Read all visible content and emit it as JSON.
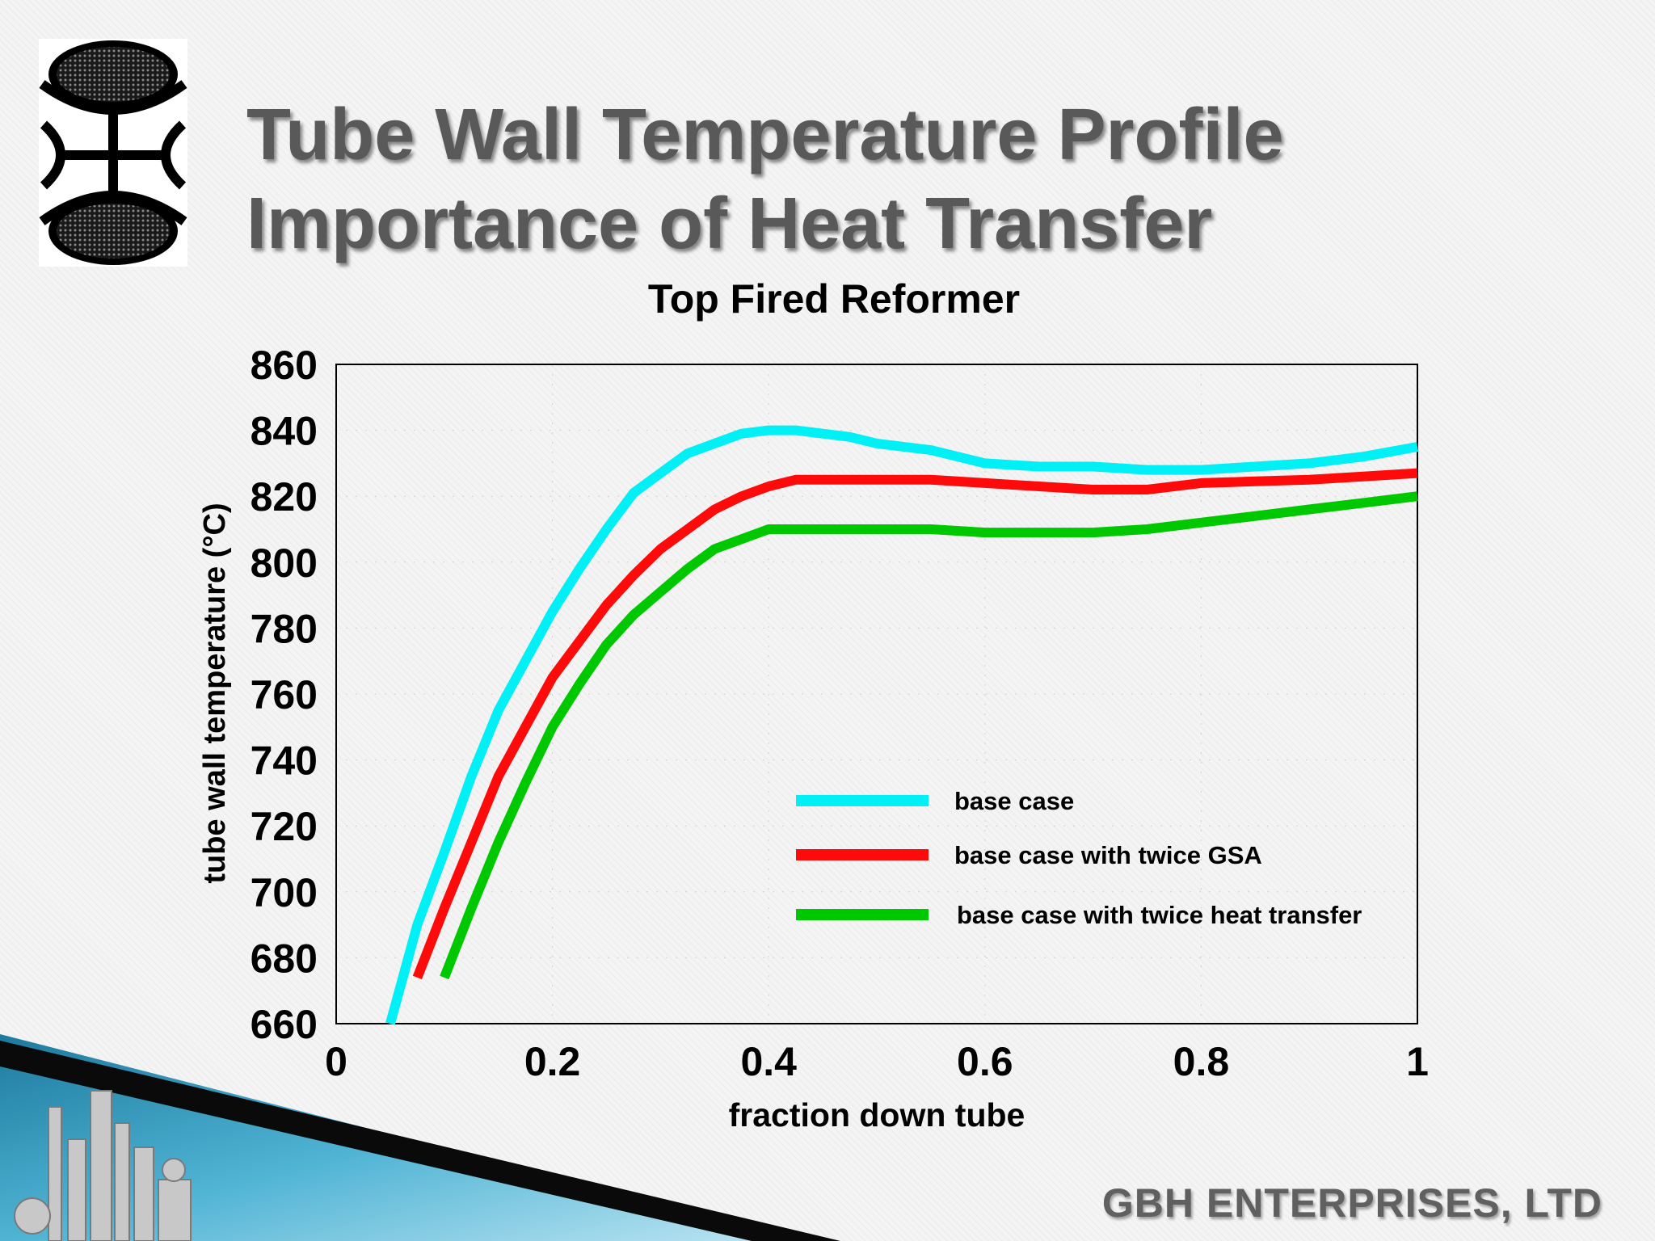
{
  "slide": {
    "title_line1": "Tube Wall Temperature Profile",
    "title_line2": "Importance of Heat Transfer",
    "company": "GBH ENTERPRISES, LTD"
  },
  "colors": {
    "base_case": "#00f0f5",
    "twice_gsa": "#ff0a0a",
    "twice_heat_transfer": "#00c800",
    "title_text": "#595959"
  },
  "chart_data": {
    "type": "line",
    "title": "Top Fired Reformer",
    "xlabel": "fraction down tube",
    "ylabel": "tube wall temperature (°C)",
    "xlim": [
      0,
      1
    ],
    "ylim": [
      660,
      860
    ],
    "xticks": [
      0,
      0.2,
      0.4,
      0.6,
      0.8,
      1
    ],
    "xtick_labels": [
      "0",
      "0.2",
      "0.4",
      "0.6",
      "0.8",
      "1"
    ],
    "yticks": [
      660,
      680,
      700,
      720,
      740,
      760,
      780,
      800,
      820,
      840,
      860
    ],
    "ytick_labels": [
      "660",
      "680",
      "700",
      "720",
      "740",
      "760",
      "780",
      "800",
      "820",
      "840",
      "860"
    ],
    "legend_position": "lower-right",
    "series": [
      {
        "name": "base case",
        "color": "#00f0f5",
        "x": [
          0.05,
          0.075,
          0.1,
          0.125,
          0.15,
          0.175,
          0.2,
          0.225,
          0.25,
          0.275,
          0.3,
          0.325,
          0.35,
          0.375,
          0.4,
          0.425,
          0.45,
          0.475,
          0.5,
          0.55,
          0.6,
          0.65,
          0.7,
          0.75,
          0.8,
          0.85,
          0.9,
          0.95,
          1.0
        ],
        "y": [
          660,
          690,
          712,
          735,
          755,
          770,
          785,
          798,
          810,
          821,
          827,
          833,
          836,
          839,
          840,
          840,
          839,
          838,
          836,
          834,
          830,
          829,
          829,
          828,
          828,
          829,
          830,
          832,
          835
        ]
      },
      {
        "name": "base case with twice GSA",
        "color": "#ff0a0a",
        "x": [
          0.075,
          0.1,
          0.125,
          0.15,
          0.175,
          0.2,
          0.225,
          0.25,
          0.275,
          0.3,
          0.325,
          0.35,
          0.375,
          0.4,
          0.425,
          0.45,
          0.5,
          0.55,
          0.6,
          0.65,
          0.7,
          0.75,
          0.8,
          0.85,
          0.9,
          0.95,
          1.0
        ],
        "y": [
          674,
          695,
          715,
          735,
          750,
          765,
          776,
          787,
          796,
          804,
          810,
          816,
          820,
          823,
          825,
          825,
          825,
          825,
          824,
          823,
          822,
          822,
          824,
          824.5,
          825,
          826,
          827
        ]
      },
      {
        "name": "base case with twice heat transfer",
        "color": "#00c800",
        "x": [
          0.1,
          0.125,
          0.15,
          0.175,
          0.2,
          0.225,
          0.25,
          0.275,
          0.3,
          0.325,
          0.35,
          0.375,
          0.4,
          0.45,
          0.5,
          0.55,
          0.6,
          0.65,
          0.7,
          0.75,
          0.8,
          0.85,
          0.9,
          0.95,
          1.0
        ],
        "y": [
          674,
          695,
          715,
          733,
          750,
          763,
          775,
          784,
          791,
          798,
          804,
          807,
          810,
          810,
          810,
          810,
          809,
          809,
          809,
          810,
          812,
          814,
          816,
          818,
          820
        ]
      }
    ]
  }
}
